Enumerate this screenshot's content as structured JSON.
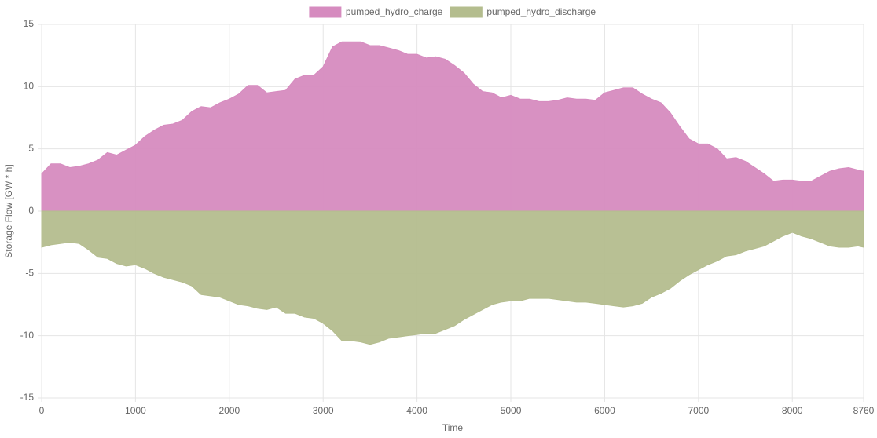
{
  "chart_data": {
    "type": "area",
    "x_label": "Time",
    "y_label": "Storage Flow [GW * h]",
    "x": [
      0,
      100,
      200,
      300,
      400,
      500,
      600,
      700,
      800,
      900,
      1000,
      1100,
      1200,
      1300,
      1400,
      1500,
      1600,
      1700,
      1800,
      1900,
      2000,
      2100,
      2200,
      2300,
      2400,
      2500,
      2600,
      2700,
      2800,
      2900,
      3000,
      3100,
      3200,
      3300,
      3400,
      3500,
      3600,
      3700,
      3800,
      3900,
      4000,
      4100,
      4200,
      4300,
      4400,
      4500,
      4600,
      4700,
      4800,
      4900,
      5000,
      5100,
      5200,
      5300,
      5400,
      5500,
      5600,
      5700,
      5800,
      5900,
      6000,
      6100,
      6200,
      6300,
      6400,
      6500,
      6600,
      6700,
      6800,
      6900,
      7000,
      7100,
      7200,
      7300,
      7400,
      7500,
      7600,
      7700,
      7800,
      7900,
      8000,
      8100,
      8200,
      8300,
      8400,
      8500,
      8600,
      8700,
      8760
    ],
    "series": [
      {
        "name": "pumped_hydro_charge",
        "color": "#d68bbf",
        "values": [
          3.0,
          3.8,
          3.8,
          3.5,
          3.6,
          3.8,
          4.1,
          4.7,
          4.5,
          4.9,
          5.3,
          6.0,
          6.5,
          6.9,
          7.0,
          7.3,
          8.0,
          8.4,
          8.3,
          8.7,
          9.0,
          9.4,
          10.1,
          10.1,
          9.5,
          9.6,
          9.7,
          10.6,
          10.9,
          10.9,
          11.6,
          13.2,
          13.6,
          13.6,
          13.6,
          13.3,
          13.3,
          13.1,
          12.9,
          12.6,
          12.6,
          12.3,
          12.4,
          12.2,
          11.7,
          11.1,
          10.2,
          9.6,
          9.5,
          9.1,
          9.3,
          9.0,
          9.0,
          8.8,
          8.8,
          8.9,
          9.1,
          9.0,
          9.0,
          8.9,
          9.5,
          9.7,
          9.9,
          9.9,
          9.4,
          9.0,
          8.7,
          7.9,
          6.8,
          5.8,
          5.4,
          5.4,
          5.0,
          4.2,
          4.3,
          4.0,
          3.5,
          3.0,
          2.4,
          2.5,
          2.5,
          2.4,
          2.4,
          2.8,
          3.2,
          3.4,
          3.5,
          3.3,
          3.2
        ]
      },
      {
        "name": "pumped_hydro_discharge",
        "color": "#b4bd8e",
        "values": [
          -2.9,
          -2.7,
          -2.6,
          -2.5,
          -2.6,
          -3.1,
          -3.7,
          -3.8,
          -4.2,
          -4.4,
          -4.3,
          -4.6,
          -5.0,
          -5.3,
          -5.5,
          -5.7,
          -6.0,
          -6.7,
          -6.8,
          -6.9,
          -7.2,
          -7.5,
          -7.6,
          -7.8,
          -7.9,
          -7.7,
          -8.2,
          -8.2,
          -8.5,
          -8.6,
          -9.0,
          -9.6,
          -10.4,
          -10.4,
          -10.5,
          -10.7,
          -10.5,
          -10.2,
          -10.1,
          -10.0,
          -9.9,
          -9.8,
          -9.8,
          -9.5,
          -9.2,
          -8.7,
          -8.3,
          -7.9,
          -7.5,
          -7.3,
          -7.2,
          -7.2,
          -7.0,
          -7.0,
          -7.0,
          -7.1,
          -7.2,
          -7.3,
          -7.3,
          -7.4,
          -7.5,
          -7.6,
          -7.7,
          -7.6,
          -7.4,
          -6.9,
          -6.6,
          -6.2,
          -5.6,
          -5.1,
          -4.7,
          -4.3,
          -4.0,
          -3.6,
          -3.5,
          -3.2,
          -3.0,
          -2.8,
          -2.4,
          -2.0,
          -1.7,
          -2.0,
          -2.2,
          -2.5,
          -2.8,
          -2.9,
          -2.9,
          -2.8,
          -2.9
        ]
      }
    ],
    "xlim": [
      0,
      8760
    ],
    "xticks": [
      0,
      1000,
      2000,
      3000,
      4000,
      5000,
      6000,
      7000,
      8000,
      8760
    ],
    "ylim": [
      -15,
      15
    ],
    "yticks": [
      -15,
      -10,
      -5,
      0,
      5,
      10,
      15
    ],
    "grid": true,
    "legend": "top"
  }
}
